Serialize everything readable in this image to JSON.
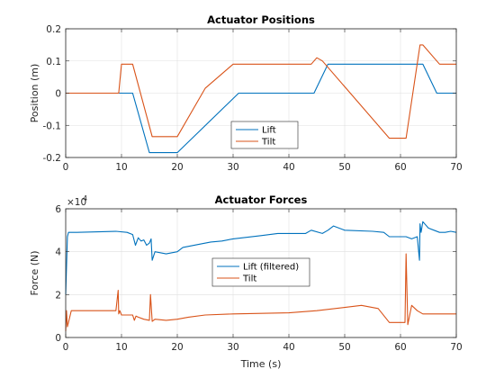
{
  "chart_data": [
    {
      "type": "line",
      "title": "Actuator Positions",
      "xlabel": "",
      "ylabel": "Position (m)",
      "xlim": [
        0,
        70
      ],
      "ylim": [
        -0.2,
        0.2
      ],
      "xticks": [
        0,
        10,
        20,
        30,
        40,
        50,
        60,
        70
      ],
      "yticks": [
        -0.2,
        -0.1,
        0,
        0.1,
        0.2
      ],
      "xtick_labels": [
        "0",
        "10",
        "20",
        "30",
        "40",
        "50",
        "60",
        "70"
      ],
      "ytick_labels": [
        "-0.2",
        "-0.1",
        "0",
        "0.1",
        "0.2"
      ],
      "grid": true,
      "legend_position": "bottom-center",
      "series": [
        {
          "name": "Lift",
          "color": "#0072BD",
          "x": [
            0,
            12,
            15,
            20,
            31,
            44.5,
            47,
            64,
            66.5,
            70
          ],
          "y": [
            0,
            0,
            -0.185,
            -0.185,
            0,
            0,
            0.09,
            0.09,
            0,
            0
          ]
        },
        {
          "name": "Tilt",
          "color": "#D95319",
          "x": [
            0,
            9.5,
            10,
            12,
            15.5,
            20,
            25,
            30,
            44,
            45,
            46,
            58,
            61,
            63.5,
            64,
            67,
            70
          ],
          "y": [
            0,
            0,
            0.09,
            0.09,
            -0.135,
            -0.135,
            0.015,
            0.09,
            0.09,
            0.11,
            0.1,
            -0.14,
            -0.14,
            0.15,
            0.15,
            0.09,
            0.09
          ]
        }
      ]
    },
    {
      "type": "line",
      "title": "Actuator Forces",
      "xlabel": "Time (s)",
      "ylabel": "Force (N)",
      "exponent_label": "×10",
      "exponent_power": "4",
      "xlim": [
        0,
        70
      ],
      "ylim": [
        0,
        6
      ],
      "xticks": [
        0,
        10,
        20,
        30,
        40,
        50,
        60,
        70
      ],
      "yticks": [
        0,
        2,
        4,
        6
      ],
      "xtick_labels": [
        "0",
        "10",
        "20",
        "30",
        "40",
        "50",
        "60",
        "70"
      ],
      "ytick_labels": [
        "0",
        "2",
        "4",
        "6"
      ],
      "grid": true,
      "legend_position": "center",
      "series": [
        {
          "name": "Lift (filtered)",
          "color": "#0072BD",
          "x": [
            0,
            0.3,
            0.5,
            1,
            2,
            9,
            11,
            12,
            12.5,
            13,
            13.5,
            14,
            14.5,
            15,
            15.3,
            15.5,
            16,
            18,
            20,
            21,
            24,
            26,
            28,
            30,
            35,
            38,
            43,
            44,
            46,
            47,
            48,
            50,
            55,
            57,
            58,
            60,
            61,
            62,
            63,
            63.4,
            63.5,
            63.7,
            64,
            65,
            66,
            67,
            68,
            69,
            70
          ],
          "y": [
            2.0,
            4.7,
            4.9,
            4.9,
            4.9,
            4.95,
            4.9,
            4.8,
            4.3,
            4.65,
            4.5,
            4.55,
            4.3,
            4.4,
            4.6,
            3.6,
            4.0,
            3.9,
            4.0,
            4.2,
            4.35,
            4.45,
            4.5,
            4.6,
            4.75,
            4.85,
            4.85,
            5.0,
            4.85,
            5.0,
            5.2,
            5.0,
            4.95,
            4.9,
            4.7,
            4.7,
            4.7,
            4.6,
            4.7,
            3.6,
            5.3,
            4.9,
            5.4,
            5.1,
            5.0,
            4.9,
            4.9,
            4.95,
            4.9
          ]
        },
        {
          "name": "Tilt",
          "color": "#D95319",
          "x": [
            0,
            0.15,
            0.3,
            1,
            9,
            9.4,
            9.5,
            9.7,
            10,
            12,
            12.3,
            12.6,
            13,
            14,
            15,
            15.2,
            15.5,
            16,
            18,
            20,
            22,
            25,
            30,
            40,
            45,
            50,
            53,
            56,
            58,
            58.5,
            60,
            60.8,
            61,
            61.3,
            62,
            63,
            64,
            70
          ],
          "y": [
            0.3,
            1.25,
            0.5,
            1.25,
            1.25,
            2.2,
            1.1,
            1.25,
            1.05,
            1.05,
            0.8,
            1.0,
            0.95,
            0.85,
            0.8,
            2.0,
            0.75,
            0.85,
            0.8,
            0.85,
            0.95,
            1.05,
            1.1,
            1.15,
            1.25,
            1.4,
            1.5,
            1.35,
            0.7,
            0.7,
            0.7,
            0.7,
            3.9,
            0.6,
            1.5,
            1.25,
            1.1,
            1.1
          ]
        }
      ]
    }
  ]
}
